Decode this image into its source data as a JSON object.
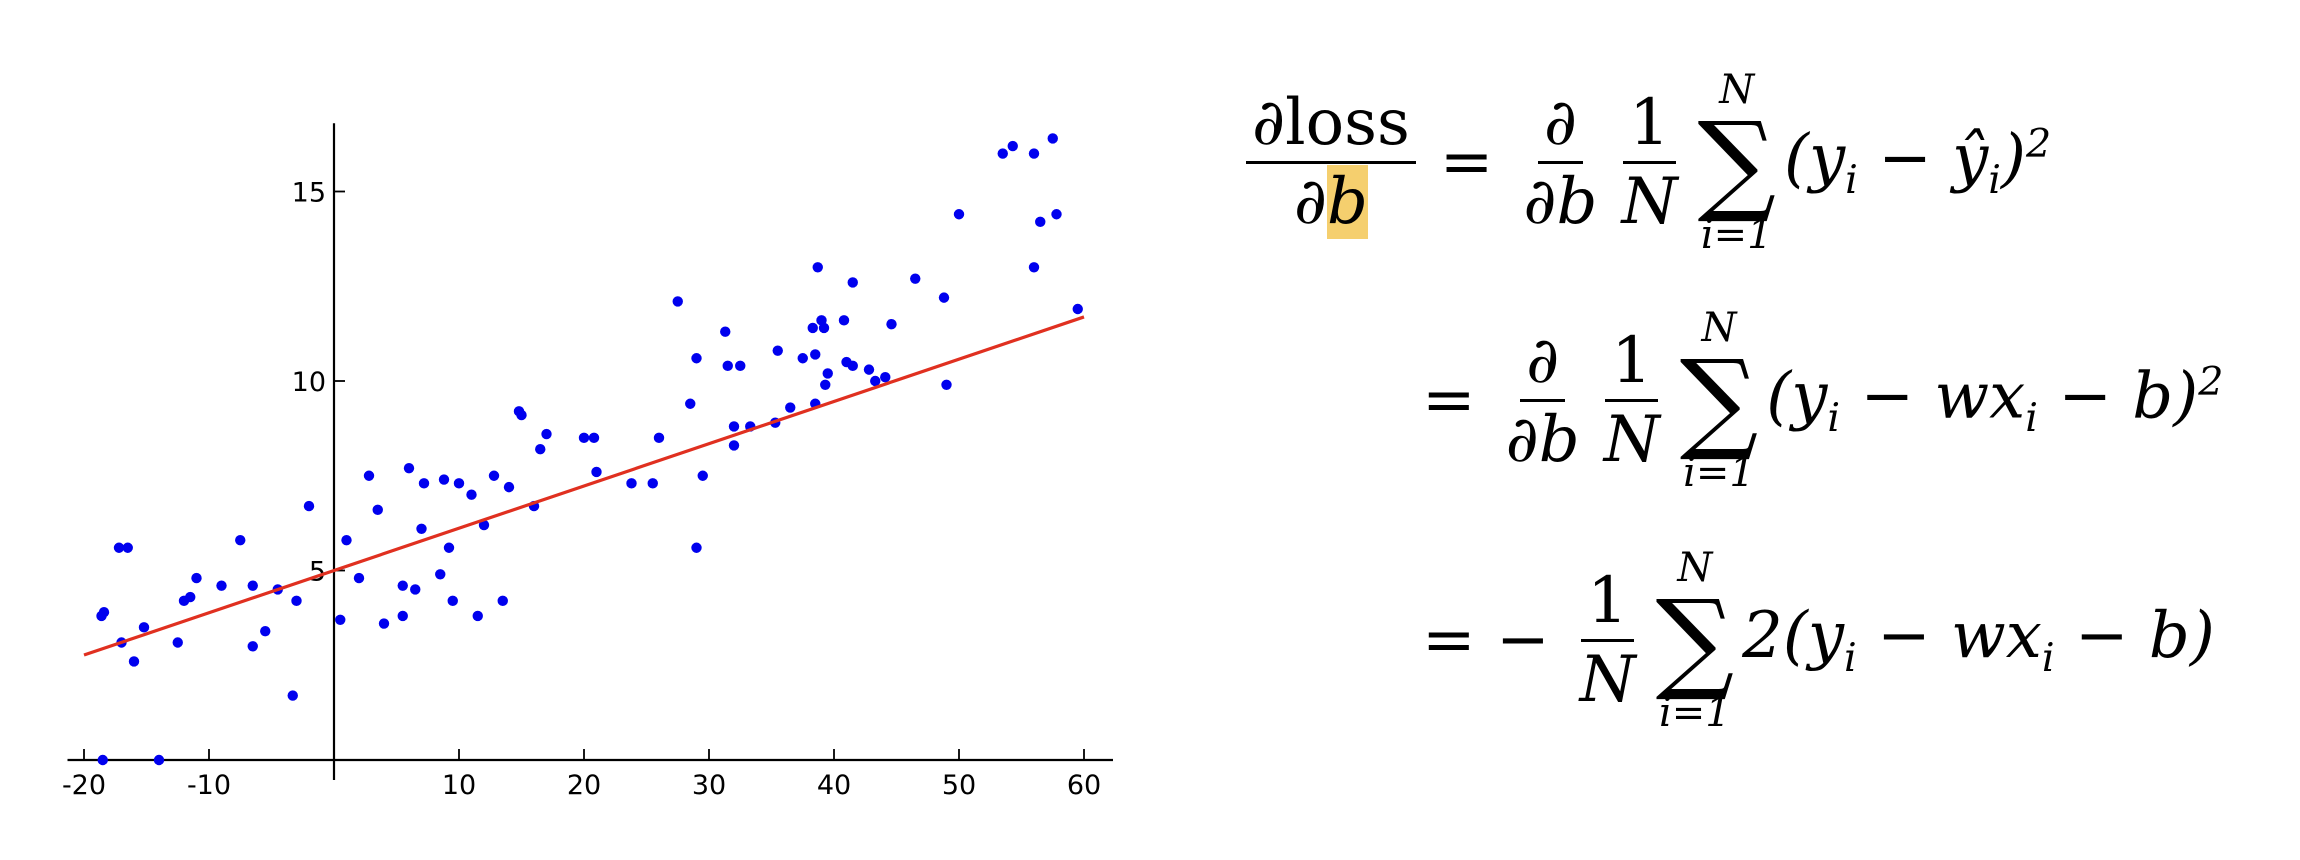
{
  "chart_data": {
    "type": "scatter",
    "title": "",
    "xlabel": "",
    "ylabel": "",
    "xlim": [
      -21,
      62
    ],
    "ylim": [
      0,
      16.8
    ],
    "xticks": [
      -20,
      -10,
      10,
      20,
      30,
      40,
      50,
      60
    ],
    "xtick_labels": [
      "-20",
      "-10",
      "10",
      "20",
      "30",
      "40",
      "50",
      "60"
    ],
    "yticks": [
      5,
      10,
      15
    ],
    "ytick_labels": [
      "5",
      "10",
      "15"
    ],
    "grid": false,
    "colors": {
      "points": "#0000ee",
      "fit_line": "#e03020",
      "axes": "#000000"
    },
    "points": [
      [
        -18.5,
        0
      ],
      [
        -18.6,
        3.8
      ],
      [
        -18.4,
        3.9
      ],
      [
        -17.2,
        5.6
      ],
      [
        -16.5,
        5.6
      ],
      [
        -17,
        3.1
      ],
      [
        -16,
        2.6
      ],
      [
        -15.2,
        3.5
      ],
      [
        -14,
        0
      ],
      [
        -12.5,
        3.1
      ],
      [
        -12,
        4.2
      ],
      [
        -11.5,
        4.3
      ],
      [
        -11,
        4.8
      ],
      [
        -9,
        4.6
      ],
      [
        -7.5,
        5.8
      ],
      [
        -6.5,
        3
      ],
      [
        -6.5,
        4.6
      ],
      [
        -5.5,
        3.4
      ],
      [
        -4.5,
        4.5
      ],
      [
        -3.3,
        1.7
      ],
      [
        -3,
        4.2
      ],
      [
        -2,
        6.7
      ],
      [
        1,
        5.8
      ],
      [
        0.5,
        3.7
      ],
      [
        2,
        4.8
      ],
      [
        2.8,
        7.5
      ],
      [
        3.5,
        6.6
      ],
      [
        4,
        3.6
      ],
      [
        5.5,
        3.8
      ],
      [
        5.5,
        4.6
      ],
      [
        6,
        7.7
      ],
      [
        6.5,
        4.5
      ],
      [
        7,
        6.1
      ],
      [
        7.2,
        7.3
      ],
      [
        8.5,
        4.9
      ],
      [
        8.8,
        7.4
      ],
      [
        9.2,
        5.6
      ],
      [
        9.5,
        4.2
      ],
      [
        10,
        7.3
      ],
      [
        11,
        7
      ],
      [
        11.5,
        3.8
      ],
      [
        12,
        6.2
      ],
      [
        12.8,
        7.5
      ],
      [
        13.5,
        4.2
      ],
      [
        14,
        7.2
      ],
      [
        14.8,
        9.2
      ],
      [
        15,
        9.1
      ],
      [
        16,
        6.7
      ],
      [
        16.5,
        8.2
      ],
      [
        17,
        8.6
      ],
      [
        20,
        8.5
      ],
      [
        20.8,
        8.5
      ],
      [
        21,
        7.6
      ],
      [
        23.8,
        7.3
      ],
      [
        25.5,
        7.3
      ],
      [
        26,
        8.5
      ],
      [
        27.5,
        12.1
      ],
      [
        28.5,
        9.4
      ],
      [
        29,
        10.6
      ],
      [
        29,
        5.6
      ],
      [
        29.5,
        7.5
      ],
      [
        31.3,
        11.3
      ],
      [
        31.5,
        10.4
      ],
      [
        32,
        8.8
      ],
      [
        32,
        8.3
      ],
      [
        32.5,
        10.4
      ],
      [
        33.3,
        8.8
      ],
      [
        35.3,
        8.9
      ],
      [
        35.5,
        10.8
      ],
      [
        36.5,
        9.3
      ],
      [
        37.5,
        10.6
      ],
      [
        38.3,
        11.4
      ],
      [
        38.5,
        10.7
      ],
      [
        38.5,
        9.4
      ],
      [
        38.7,
        13
      ],
      [
        39,
        11.6
      ],
      [
        39.2,
        11.4
      ],
      [
        39.3,
        9.9
      ],
      [
        39.5,
        10.2
      ],
      [
        40.8,
        11.6
      ],
      [
        41,
        10.5
      ],
      [
        41.5,
        10.4
      ],
      [
        41.5,
        12.6
      ],
      [
        42.8,
        10.3
      ],
      [
        43.3,
        10
      ],
      [
        44.1,
        10.1
      ],
      [
        44.6,
        11.5
      ],
      [
        46.5,
        12.7
      ],
      [
        48.8,
        12.2
      ],
      [
        49,
        9.9
      ],
      [
        50,
        14.4
      ],
      [
        53.5,
        16
      ],
      [
        54.3,
        16.2
      ],
      [
        56,
        16
      ],
      [
        56,
        13
      ],
      [
        56.5,
        14.2
      ],
      [
        57.5,
        16.4
      ],
      [
        57.8,
        14.4
      ],
      [
        59.5,
        11.9
      ]
    ],
    "fit_line": {
      "slope": 0.1115,
      "intercept": 5.0,
      "x_range": [
        -20,
        60
      ]
    }
  },
  "equations": {
    "row1": {
      "lhs_num": "∂loss",
      "lhs_den_prefix": "∂",
      "lhs_den_highlight": "b",
      "eq": "=",
      "d_num": "∂",
      "d_den": "∂b",
      "one": "1",
      "N": "N",
      "sum_top": "N",
      "sum_bot": "i=1",
      "body": "(y",
      "body_sub": "i",
      "body_mid": " − ŷ",
      "body_sub2": "i",
      "body_end": ")",
      "body_sup": "2"
    },
    "row2": {
      "eq": "=",
      "d_num": "∂",
      "d_den": "∂b",
      "one": "1",
      "N": "N",
      "sum_top": "N",
      "sum_bot": "i=1",
      "body": "(y",
      "body_sub": "i",
      "body_mid": " − wx",
      "body_sub2": "i",
      "body_end": " − b)",
      "body_sup": "2"
    },
    "row3": {
      "eq": "= −",
      "one": "1",
      "N": "N",
      "sum_top": "N",
      "sum_bot": "i=1",
      "body": "2(y",
      "body_sub": "i",
      "body_mid": " − wx",
      "body_sub2": "i",
      "body_end": " − b)"
    }
  }
}
